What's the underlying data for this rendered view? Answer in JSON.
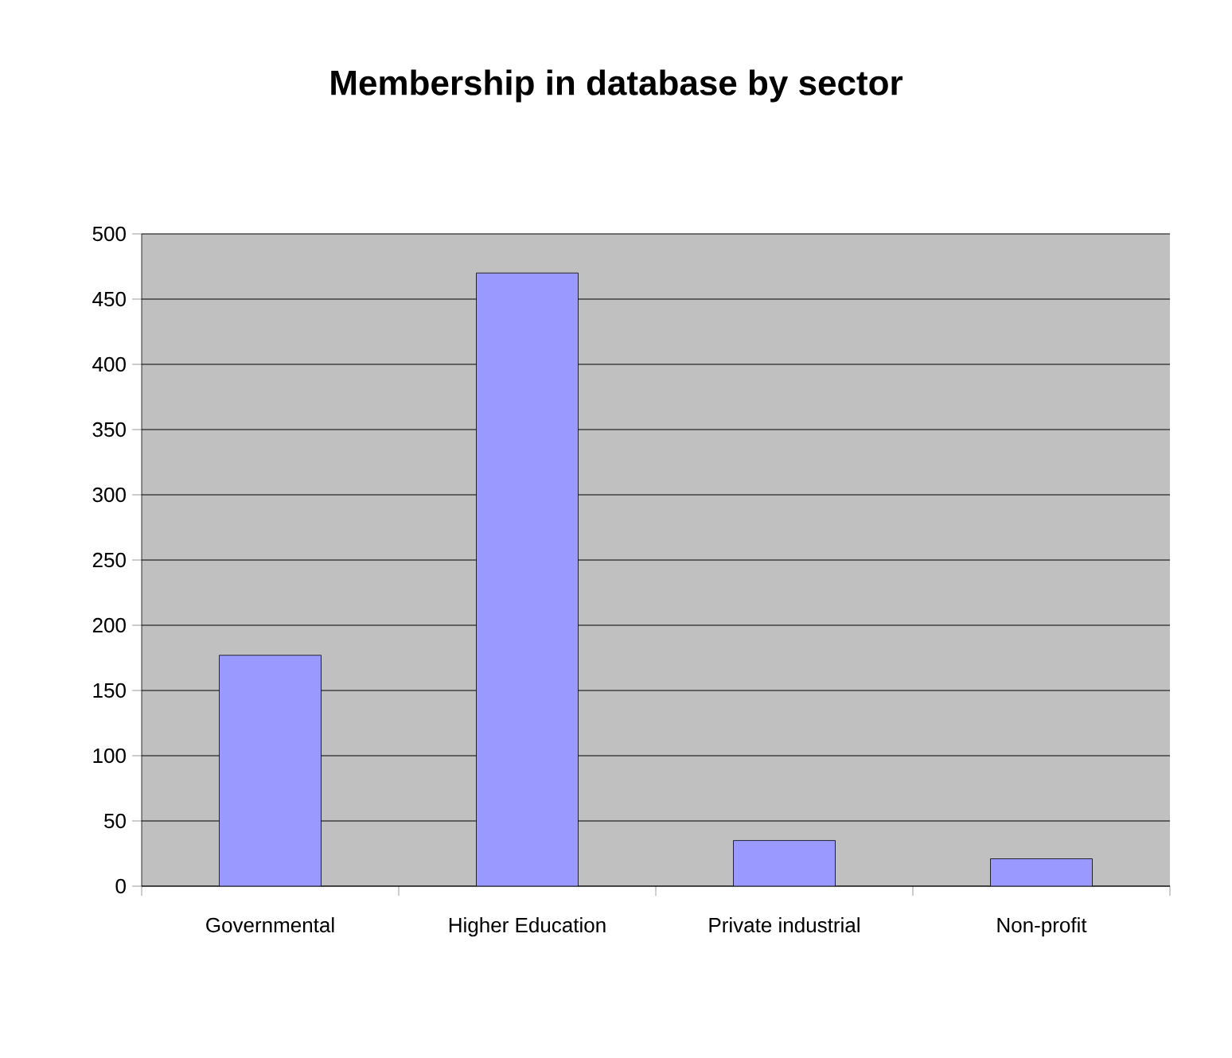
{
  "chart_data": {
    "type": "bar",
    "title": "Membership in database by sector",
    "categories": [
      "Governmental",
      "Higher Education",
      "Private industrial",
      "Non-profit"
    ],
    "values": [
      177,
      470,
      35,
      21
    ],
    "color": "#9999ff",
    "ylim": [
      0,
      500
    ],
    "yticks": [
      0,
      50,
      100,
      150,
      200,
      250,
      300,
      350,
      400,
      450,
      500
    ],
    "grid": "y"
  }
}
